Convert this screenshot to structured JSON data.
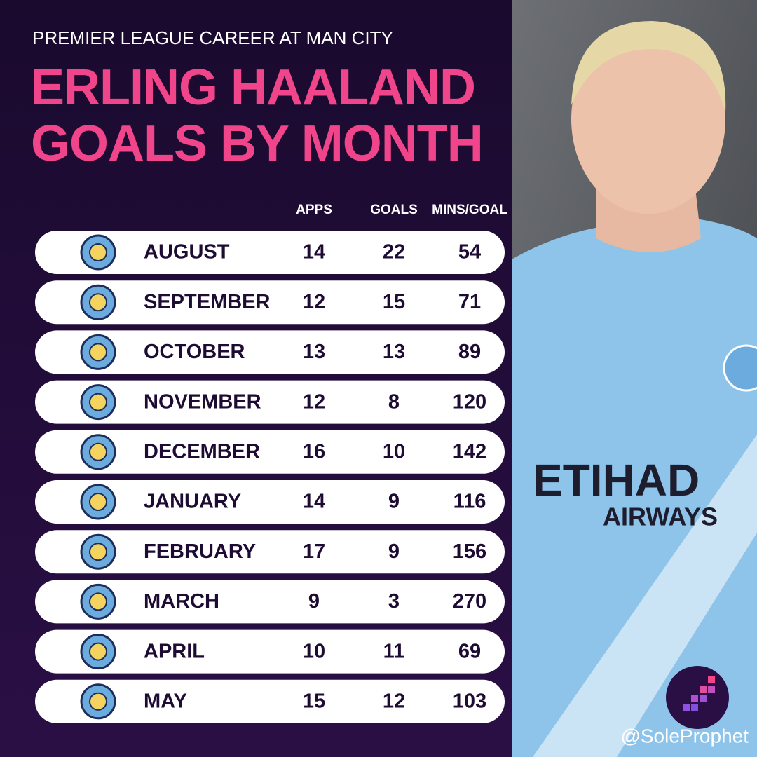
{
  "header": {
    "subtitle": "PREMIER LEAGUE CAREER AT MAN CITY",
    "title_lines": [
      "ERLING HAALAND",
      "GOALS BY MONTH"
    ]
  },
  "table": {
    "columns": [
      "APPS",
      "GOALS",
      "MINS/GOAL"
    ],
    "rows": [
      [
        "AUGUST",
        14,
        22,
        54
      ],
      [
        "SEPTEMBER",
        12,
        15,
        71
      ],
      [
        "OCTOBER",
        13,
        13,
        89
      ],
      [
        "NOVEMBER",
        12,
        8,
        120
      ],
      [
        "DECEMBER",
        16,
        10,
        142
      ],
      [
        "JANUARY",
        14,
        9,
        116
      ],
      [
        "FEBRUARY",
        17,
        9,
        156
      ],
      [
        "MARCH",
        9,
        3,
        270
      ],
      [
        "APRIL",
        10,
        11,
        69
      ],
      [
        "MAY",
        15,
        12,
        103
      ]
    ]
  },
  "watermark": "@SoleProphet"
}
